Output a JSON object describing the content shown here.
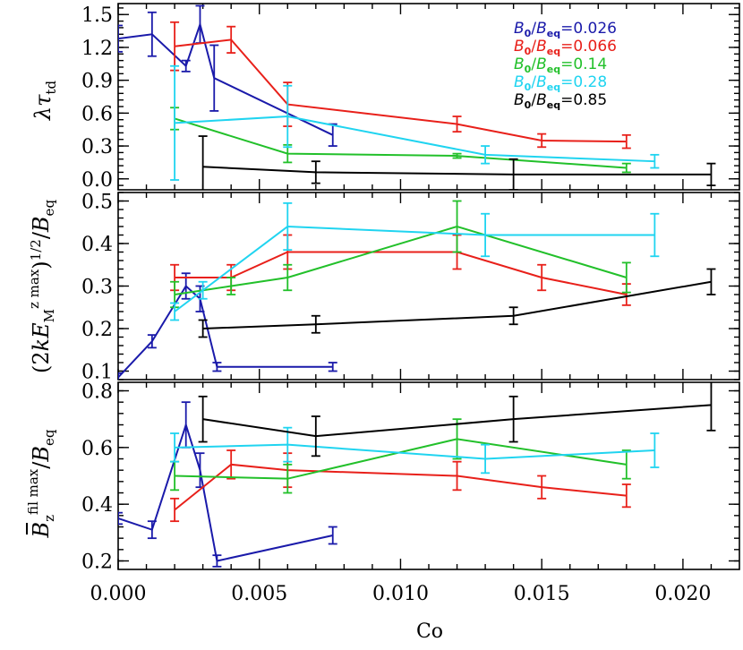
{
  "chart_data": [
    {
      "type": "line",
      "panel": "top",
      "ylabel": "λτtd",
      "ylabel_parts": {
        "base": "λτ",
        "sub": "td"
      },
      "xlim": [
        0,
        0.022
      ],
      "ylim": [
        -0.1,
        1.6
      ],
      "yticks": [
        0.0,
        0.3,
        0.6,
        0.9,
        1.2,
        1.5
      ],
      "ytick_labels": [
        "0.0",
        "0.3",
        "0.6",
        "0.9",
        "1.2",
        "1.5"
      ],
      "legend": {
        "position": "top-right",
        "entries": [
          {
            "label_main": "B0/Beq",
            "label_value": "=0.026",
            "color": "#1a1aaa"
          },
          {
            "label_main": "B0/Beq",
            "label_value": "=0.066",
            "color": "#e8201a"
          },
          {
            "label_main": "B0/Beq",
            "label_value": "=0.14",
            "color": "#22c02a"
          },
          {
            "label_main": "B0/Beq",
            "label_value": "=0.28",
            "color": "#20d4f0"
          },
          {
            "label_main": "B0/Beq",
            "label_value": "=0.85",
            "color": "#000000"
          }
        ]
      },
      "series": [
        {
          "color": "#1a1aaa",
          "x": [
            0.0,
            0.0012,
            0.0024,
            0.0029,
            0.0034,
            0.0076
          ],
          "y": [
            1.28,
            1.32,
            1.03,
            1.41,
            0.92,
            0.4
          ],
          "err": [
            0.12,
            0.2,
            0.05,
            0.17,
            0.3,
            0.1
          ]
        },
        {
          "color": "#e8201a",
          "x": [
            0.002,
            0.004,
            0.006,
            0.012,
            0.015,
            0.018
          ],
          "y": [
            1.21,
            1.27,
            0.68,
            0.5,
            0.35,
            0.34
          ],
          "err": [
            0.22,
            0.12,
            0.2,
            0.07,
            0.06,
            0.06
          ]
        },
        {
          "color": "#22c02a",
          "x": [
            0.002,
            0.006,
            0.012,
            0.018
          ],
          "y": [
            0.55,
            0.23,
            0.21,
            0.1
          ],
          "err": [
            0.1,
            0.08,
            0.02,
            0.04
          ]
        },
        {
          "color": "#20d4f0",
          "x": [
            0.002,
            0.006,
            0.013,
            0.019
          ],
          "y": [
            0.51,
            0.57,
            0.22,
            0.16
          ],
          "err": [
            0.52,
            0.28,
            0.08,
            0.06
          ]
        },
        {
          "color": "#000000",
          "x": [
            0.003,
            0.007,
            0.014,
            0.021
          ],
          "y": [
            0.11,
            0.06,
            0.04,
            0.04
          ],
          "err": [
            0.28,
            0.1,
            0.14,
            0.1
          ]
        }
      ]
    },
    {
      "type": "line",
      "panel": "middle",
      "ylabel": "(2kEMz max)1/2/Beq",
      "xlim": [
        0,
        0.022
      ],
      "ylim": [
        0.08,
        0.52
      ],
      "yticks": [
        0.1,
        0.2,
        0.3,
        0.4,
        0.5
      ],
      "ytick_labels": [
        "0.1",
        "0.2",
        "0.3",
        "0.4",
        "0.5"
      ],
      "series": [
        {
          "color": "#1a1aaa",
          "x": [
            0.0,
            0.0012,
            0.0024,
            0.0029,
            0.0035,
            0.0076
          ],
          "y": [
            0.085,
            0.17,
            0.3,
            0.27,
            0.11,
            0.11
          ],
          "err": [
            0.01,
            0.015,
            0.03,
            0.03,
            0.01,
            0.01
          ]
        },
        {
          "color": "#e8201a",
          "x": [
            0.002,
            0.004,
            0.006,
            0.012,
            0.015,
            0.018
          ],
          "y": [
            0.32,
            0.32,
            0.38,
            0.38,
            0.32,
            0.28
          ],
          "err": [
            0.03,
            0.03,
            0.04,
            0.04,
            0.03,
            0.025
          ]
        },
        {
          "color": "#22c02a",
          "x": [
            0.002,
            0.004,
            0.006,
            0.012,
            0.018
          ],
          "y": [
            0.28,
            0.3,
            0.32,
            0.44,
            0.32
          ],
          "err": [
            0.03,
            0.02,
            0.03,
            0.06,
            0.035
          ]
        },
        {
          "color": "#20d4f0",
          "x": [
            0.002,
            0.003,
            0.006,
            0.013,
            0.019
          ],
          "y": [
            0.24,
            0.29,
            0.44,
            0.42,
            0.42
          ],
          "err": [
            0.02,
            0.02,
            0.055,
            0.05,
            0.05
          ]
        },
        {
          "color": "#000000",
          "x": [
            0.003,
            0.007,
            0.014,
            0.021
          ],
          "y": [
            0.2,
            0.21,
            0.23,
            0.31
          ],
          "err": [
            0.02,
            0.02,
            0.02,
            0.03
          ]
        }
      ]
    },
    {
      "type": "line",
      "panel": "bottom",
      "ylabel": "Bzfil max/Beq",
      "xlabel": "Co",
      "xlim": [
        0,
        0.022
      ],
      "ylim": [
        0.17,
        0.83
      ],
      "yticks": [
        0.2,
        0.4,
        0.6,
        0.8
      ],
      "ytick_labels": [
        "0.2",
        "0.4",
        "0.6",
        "0.8"
      ],
      "xticks": [
        0.0,
        0.005,
        0.01,
        0.015,
        0.02
      ],
      "xtick_labels": [
        "0.000",
        "0.005",
        "0.010",
        "0.015",
        "0.020"
      ],
      "series": [
        {
          "color": "#1a1aaa",
          "x": [
            0.0,
            0.0012,
            0.0024,
            0.0029,
            0.0035,
            0.0076
          ],
          "y": [
            0.35,
            0.31,
            0.68,
            0.52,
            0.2,
            0.29
          ],
          "err": [
            0.02,
            0.03,
            0.08,
            0.06,
            0.02,
            0.03
          ]
        },
        {
          "color": "#e8201a",
          "x": [
            0.002,
            0.004,
            0.006,
            0.012,
            0.015,
            0.018
          ],
          "y": [
            0.38,
            0.54,
            0.52,
            0.5,
            0.46,
            0.43
          ],
          "err": [
            0.04,
            0.05,
            0.06,
            0.05,
            0.04,
            0.04
          ]
        },
        {
          "color": "#22c02a",
          "x": [
            0.002,
            0.006,
            0.012,
            0.018
          ],
          "y": [
            0.5,
            0.49,
            0.63,
            0.54
          ],
          "err": [
            0.05,
            0.05,
            0.07,
            0.05
          ]
        },
        {
          "color": "#20d4f0",
          "x": [
            0.002,
            0.006,
            0.013,
            0.019
          ],
          "y": [
            0.6,
            0.61,
            0.56,
            0.59
          ],
          "err": [
            0.05,
            0.06,
            0.05,
            0.06
          ]
        },
        {
          "color": "#000000",
          "x": [
            0.003,
            0.007,
            0.014,
            0.021
          ],
          "y": [
            0.7,
            0.64,
            0.7,
            0.75
          ],
          "err": [
            0.08,
            0.07,
            0.08,
            0.09
          ]
        }
      ]
    }
  ]
}
